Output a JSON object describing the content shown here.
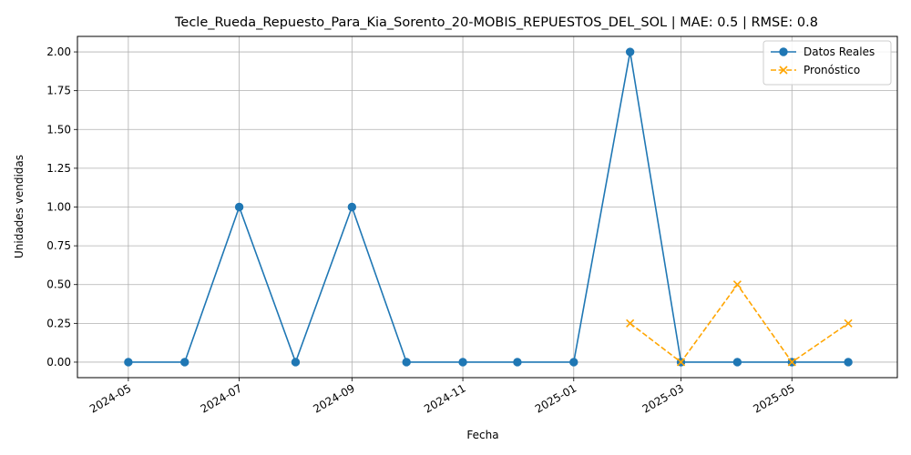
{
  "chart_data": {
    "type": "line",
    "title": "Tecle_Rueda_Repuesto_Para_Kia_Sorento_20-MOBIS_REPUESTOS_DEL_SOL | MAE: 0.5 | RMSE: 0.8",
    "xlabel": "Fecha",
    "ylabel": "Unidades vendidas",
    "grid": true,
    "legend_position": "top-right",
    "ylim": [
      -0.1,
      2.1
    ],
    "xlim": [
      "2024-04-03",
      "2025-06-28"
    ],
    "x_ticks": [
      "2024-05",
      "2024-07",
      "2024-09",
      "2024-11",
      "2025-01",
      "2025-03",
      "2025-05"
    ],
    "y_ticks": [
      "0.00",
      "0.25",
      "0.50",
      "0.75",
      "1.00",
      "1.25",
      "1.50",
      "1.75",
      "2.00"
    ],
    "series": [
      {
        "name": "Datos Reales",
        "color": "#1f77b4",
        "style": "solid",
        "marker": "circle",
        "x": [
          "2024-05-01",
          "2024-06-01",
          "2024-07-01",
          "2024-08-01",
          "2024-09-01",
          "2024-10-01",
          "2024-11-01",
          "2024-12-01",
          "2025-01-01",
          "2025-02-01",
          "2025-03-01",
          "2025-04-01",
          "2025-05-01",
          "2025-06-01"
        ],
        "values": [
          0,
          0,
          1,
          0,
          1,
          0,
          0,
          0,
          0,
          2,
          0,
          0,
          0,
          0
        ]
      },
      {
        "name": "Pronóstico",
        "color": "#ffa500",
        "style": "dashed",
        "marker": "x",
        "x": [
          "2025-02-01",
          "2025-03-01",
          "2025-04-01",
          "2025-05-01",
          "2025-06-01"
        ],
        "values": [
          0.25,
          0,
          0.5,
          0,
          0.25
        ]
      }
    ]
  }
}
